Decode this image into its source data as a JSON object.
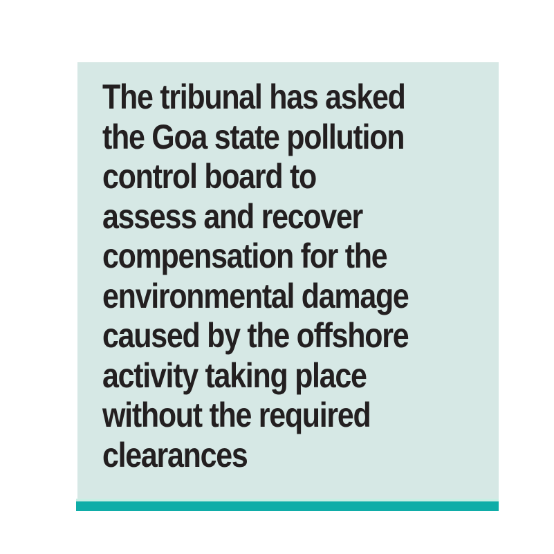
{
  "quote_box": {
    "text": "The tribunal has asked the Goa state pollution control board to assess and recover compensation for the environmental damage caused by the offshore activity taking place without the required clearances",
    "lines": [
      "The tribunal has asked",
      "the Goa state pollution",
      "control board to",
      "assess and recover",
      "compensation for the",
      "environmental damage",
      "caused by the offshore",
      "activity taking place",
      "without the required",
      "clearances"
    ],
    "colors": {
      "card_background": "#d6e8e5",
      "accent_bar": "#0fada8",
      "text": "#231f20",
      "page_background": "#ffffff"
    }
  }
}
